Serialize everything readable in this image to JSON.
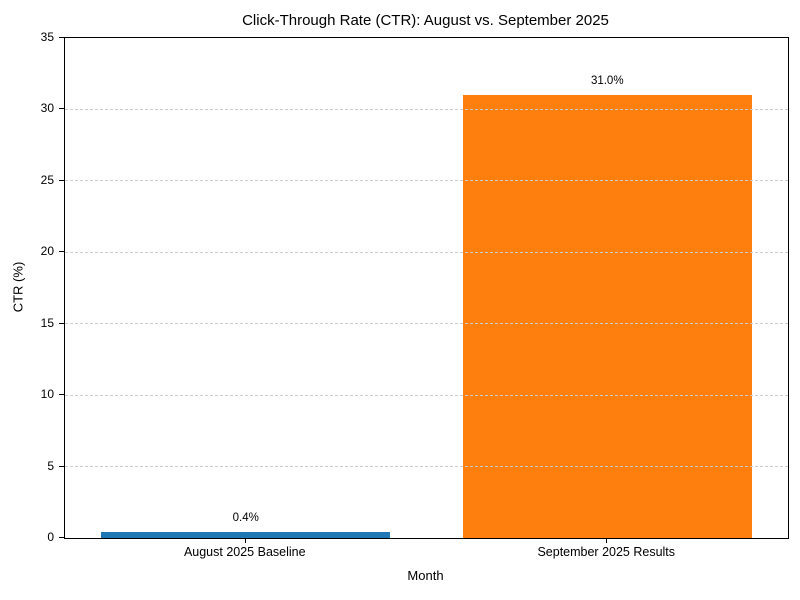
{
  "chart_data": {
    "type": "bar",
    "title": "Click-Through Rate (CTR): August vs. September 2025",
    "xlabel": "Month",
    "ylabel": "CTR (%)",
    "categories": [
      "August 2025 Baseline",
      "September 2025 Results"
    ],
    "values": [
      0.4,
      31.0
    ],
    "value_labels": [
      "0.4%",
      "31.0%"
    ],
    "bar_colors": [
      "#1f77b4",
      "#ff7f0e"
    ],
    "ylim": [
      0,
      35
    ],
    "yticks": [
      0,
      5,
      10,
      15,
      20,
      25,
      30,
      35
    ],
    "grid": {
      "axis": "y",
      "style": "dashed",
      "color": "#cccccc",
      "on_top_of_bars": true
    },
    "legend_position": "none",
    "bar_width_fraction": 0.8,
    "background_color": "#ffffff",
    "spine_color": "#000000"
  }
}
